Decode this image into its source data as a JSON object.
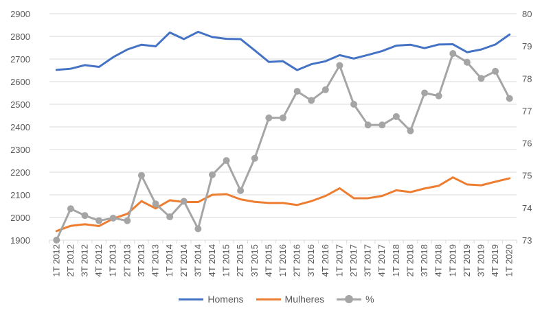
{
  "chart_data": {
    "type": "line",
    "title": "",
    "xlabel": "",
    "ylabel": "",
    "grid": true,
    "legend_position": "bottom",
    "categories": [
      "1T 2012",
      "2T 2012",
      "3T 2012",
      "4T 2012",
      "1T 2013",
      "2T 2013",
      "3T 2013",
      "4T 2013",
      "1T 2014",
      "2T 2014",
      "3T 2014",
      "4T 2014",
      "1T 2015",
      "2T 2015",
      "3T 2015",
      "4T 2015",
      "1T 2016",
      "2T 2016",
      "3T 2016",
      "4T 2016",
      "1T 2017",
      "2T 2017",
      "3T 2017",
      "4T 2017",
      "1T 2018",
      "2T 2018",
      "3T 2018",
      "4T 2018",
      "1T 2019",
      "2T 2019",
      "3T 2019",
      "4T 2019",
      "1T 2020"
    ],
    "ylim_left": [
      1900,
      2900
    ],
    "yticks_left": [
      1900,
      2000,
      2100,
      2200,
      2300,
      2400,
      2500,
      2600,
      2700,
      2800,
      2900
    ],
    "ylim_right": [
      73,
      80
    ],
    "yticks_right": [
      73,
      74,
      75,
      76,
      77,
      78,
      79,
      80
    ],
    "series": [
      {
        "name": "Homens",
        "axis": "left",
        "color": "#4472C4",
        "markers": false,
        "values": [
          2652,
          2657,
          2673,
          2665,
          2708,
          2742,
          2763,
          2756,
          2817,
          2788,
          2820,
          2797,
          2789,
          2788,
          2738,
          2687,
          2690,
          2651,
          2677,
          2690,
          2717,
          2702,
          2718,
          2735,
          2759,
          2763,
          2748,
          2764,
          2765,
          2730,
          2742,
          2764,
          2808
        ]
      },
      {
        "name": "Mulheres",
        "axis": "left",
        "color": "#ED7D31",
        "markers": false,
        "values": [
          1940,
          1963,
          1970,
          1962,
          1995,
          2016,
          2072,
          2040,
          2076,
          2068,
          2068,
          2100,
          2103,
          2080,
          2069,
          2064,
          2064,
          2055,
          2072,
          2095,
          2129,
          2085,
          2085,
          2095,
          2120,
          2112,
          2128,
          2140,
          2177,
          2146,
          2142,
          2158,
          2173
        ]
      },
      {
        "name": "%",
        "axis": "right",
        "color": "#A5A5A5",
        "markers": true,
        "values": [
          73.0,
          73.97,
          73.76,
          73.6,
          73.68,
          73.6,
          75.0,
          74.12,
          73.72,
          74.2,
          73.35,
          75.02,
          75.46,
          74.53,
          75.53,
          76.78,
          76.78,
          77.6,
          77.32,
          77.65,
          78.4,
          77.2,
          76.56,
          76.56,
          76.82,
          76.38,
          77.55,
          77.46,
          78.77,
          78.5,
          78.0,
          78.22,
          77.38
        ]
      }
    ]
  }
}
